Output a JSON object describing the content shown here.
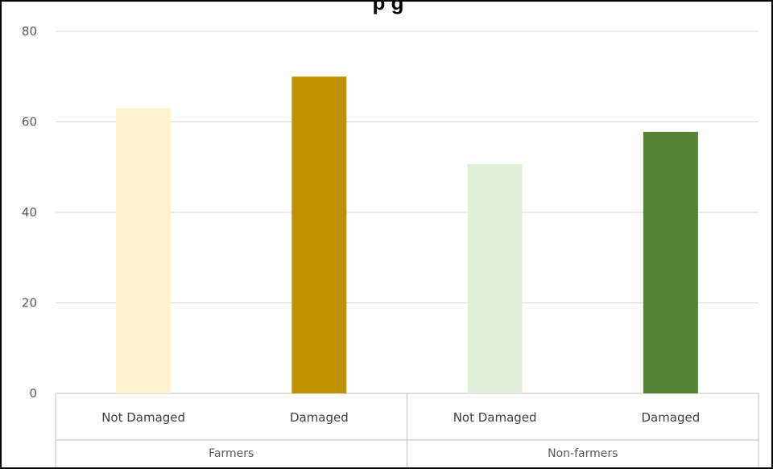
{
  "chart_data": {
    "type": "bar",
    "title": "",
    "xlabel": "",
    "ylabel": "",
    "ylim": [
      0,
      80
    ],
    "yticks": [
      0,
      20,
      40,
      60,
      80
    ],
    "grid": true,
    "groups": [
      {
        "label": "Farmers",
        "bars": [
          {
            "category": "Not Damaged",
            "value": 63,
            "color": "#FFF2CC"
          },
          {
            "category": "Damaged",
            "value": 70,
            "color": "#BF9000"
          }
        ]
      },
      {
        "label": "Non-farmers",
        "bars": [
          {
            "category": "Not Damaged",
            "value": 50.7,
            "color": "#E2EFDA"
          },
          {
            "category": "Damaged",
            "value": 57.8,
            "color": "#548235"
          }
        ]
      }
    ]
  },
  "title_visible_fragment": "p          g"
}
